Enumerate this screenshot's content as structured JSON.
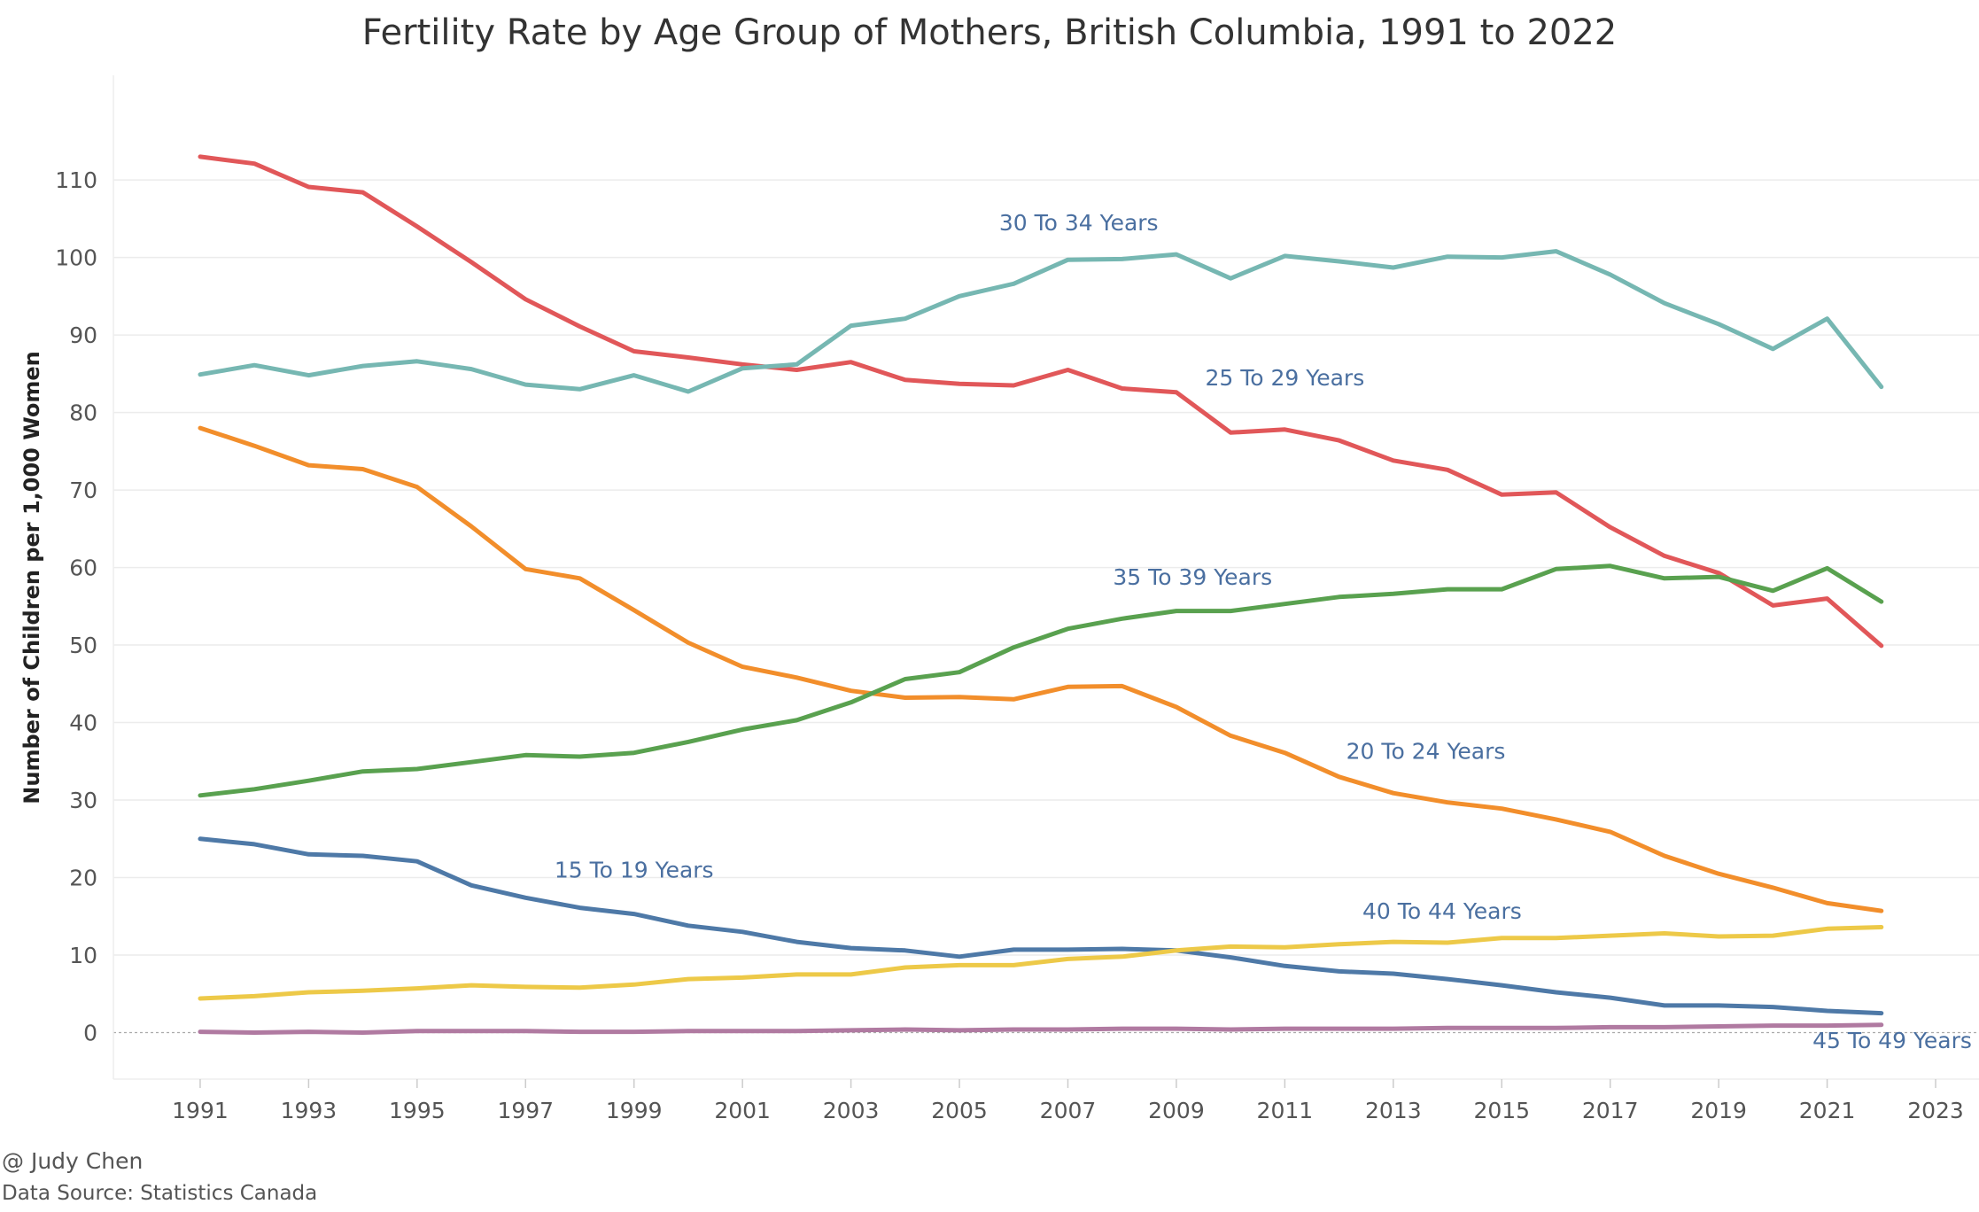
{
  "chart_data": {
    "type": "line",
    "title": "Fertility Rate by Age Group of Mothers, British Columbia, 1991 to 2022",
    "ylabel": "Number of Children per 1,000 Women",
    "xlabel": "",
    "xlim": [
      1989.4,
      2023.8
    ],
    "ylim": [
      -6,
      123.5
    ],
    "x_ticks": [
      1991,
      1993,
      1995,
      1997,
      1999,
      2001,
      2003,
      2005,
      2007,
      2009,
      2011,
      2013,
      2015,
      2017,
      2019,
      2021,
      2023
    ],
    "y_ticks": [
      0,
      10,
      20,
      30,
      40,
      50,
      60,
      70,
      80,
      90,
      100,
      110
    ],
    "grid": true,
    "legend": "none (inline labels)",
    "x": [
      1991,
      1992,
      1993,
      1994,
      1995,
      1996,
      1997,
      1998,
      1999,
      2000,
      2001,
      2002,
      2003,
      2004,
      2005,
      2006,
      2007,
      2008,
      2009,
      2010,
      2011,
      2012,
      2013,
      2014,
      2015,
      2016,
      2017,
      2018,
      2019,
      2020,
      2021,
      2022
    ],
    "series": [
      {
        "name": "15 To 19 Years",
        "color": "#4e79a7",
        "values": [
          25.0,
          24.3,
          23.0,
          22.8,
          22.1,
          19.0,
          17.4,
          16.1,
          15.3,
          13.8,
          13.0,
          11.7,
          10.9,
          10.6,
          9.8,
          10.7,
          10.7,
          10.8,
          10.6,
          9.7,
          8.6,
          7.9,
          7.6,
          6.9,
          6.1,
          5.2,
          4.5,
          3.5,
          3.5,
          3.3,
          2.8,
          2.5
        ]
      },
      {
        "name": "20 To 24 Years",
        "color": "#f28e2b",
        "values": [
          78.0,
          75.7,
          73.2,
          72.7,
          70.4,
          65.3,
          59.8,
          58.6,
          54.5,
          50.3,
          47.2,
          45.8,
          44.1,
          43.2,
          43.3,
          43.0,
          44.6,
          44.7,
          42.0,
          38.3,
          36.1,
          33.0,
          30.9,
          29.7,
          28.9,
          27.5,
          25.9,
          22.8,
          20.5,
          18.7,
          16.7,
          15.7
        ]
      },
      {
        "name": "25 To 29 Years",
        "color": "#e15759",
        "values": [
          113.0,
          112.1,
          109.1,
          108.4,
          104.0,
          99.4,
          94.6,
          91.1,
          87.9,
          87.1,
          86.2,
          85.5,
          86.5,
          84.2,
          83.7,
          83.5,
          85.5,
          83.1,
          82.6,
          77.4,
          77.8,
          76.4,
          73.8,
          72.6,
          69.4,
          69.7,
          65.2,
          61.5,
          59.3,
          55.1,
          56.0,
          49.9
        ]
      },
      {
        "name": "30 To 34 Years",
        "color": "#76b7b2",
        "values": [
          84.9,
          86.1,
          84.8,
          86.0,
          86.6,
          85.6,
          83.6,
          83.0,
          84.8,
          82.7,
          85.7,
          86.2,
          91.2,
          92.1,
          95.0,
          96.6,
          99.7,
          99.8,
          100.4,
          97.3,
          100.2,
          99.5,
          98.7,
          100.1,
          100.0,
          100.8,
          97.8,
          94.1,
          91.4,
          88.2,
          92.1,
          83.3
        ]
      },
      {
        "name": "35 To 39 Years",
        "color": "#59a14f",
        "values": [
          30.6,
          31.4,
          32.5,
          33.7,
          34.0,
          34.9,
          35.8,
          35.6,
          36.1,
          37.5,
          39.1,
          40.3,
          42.6,
          45.6,
          46.5,
          49.7,
          52.1,
          53.4,
          54.4,
          54.4,
          55.3,
          56.2,
          56.6,
          57.2,
          57.2,
          59.8,
          60.2,
          58.6,
          58.8,
          57.0,
          59.9,
          55.6
        ]
      },
      {
        "name": "40 To 44 Years",
        "color": "#edc948",
        "values": [
          4.4,
          4.7,
          5.2,
          5.4,
          5.7,
          6.1,
          5.9,
          5.8,
          6.2,
          6.9,
          7.1,
          7.5,
          7.5,
          8.4,
          8.7,
          8.7,
          9.5,
          9.8,
          10.6,
          11.1,
          11.0,
          11.4,
          11.7,
          11.6,
          12.2,
          12.2,
          12.5,
          12.8,
          12.4,
          12.5,
          13.4,
          13.6
        ]
      },
      {
        "name": "45 To 49 Years",
        "color": "#b07aa1",
        "values": [
          0.1,
          0.0,
          0.1,
          0.0,
          0.2,
          0.2,
          0.2,
          0.1,
          0.1,
          0.2,
          0.2,
          0.2,
          0.3,
          0.4,
          0.3,
          0.4,
          0.4,
          0.5,
          0.5,
          0.4,
          0.5,
          0.5,
          0.5,
          0.6,
          0.6,
          0.6,
          0.7,
          0.7,
          0.8,
          0.9,
          0.9,
          1.0
        ]
      }
    ],
    "annotations": [
      {
        "text": "30 To 34 Years",
        "x": 2007.2,
        "y": 103.5
      },
      {
        "text": "25 To 29 Years",
        "x": 2011.0,
        "y": 83.5
      },
      {
        "text": "35 To 39 Years",
        "x": 2009.3,
        "y": 57.8
      },
      {
        "text": "20 To 24 Years",
        "x": 2013.6,
        "y": 35.3
      },
      {
        "text": "15 To 19 Years",
        "x": 1999.0,
        "y": 20.0
      },
      {
        "text": "40 To 44 Years",
        "x": 2013.9,
        "y": 14.7
      },
      {
        "text": "45 To 49 Years",
        "x": 2022.2,
        "y": -2.0
      }
    ]
  },
  "footer": {
    "credit": "@ Judy Chen",
    "source": "Data Source: Statistics Canada"
  }
}
